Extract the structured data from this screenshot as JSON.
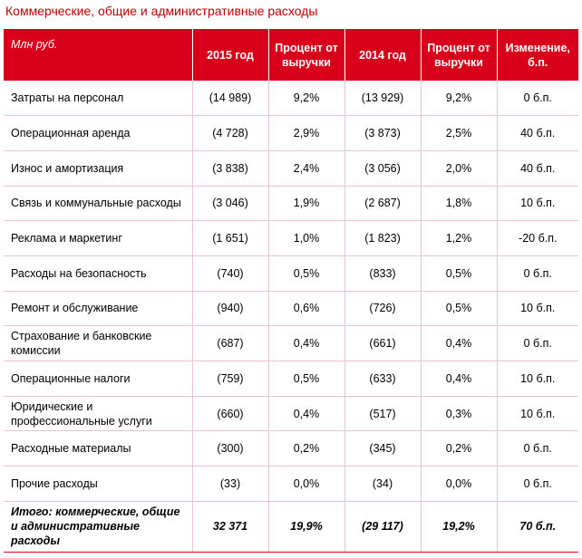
{
  "title": "Коммерческие, общие и административные расходы",
  "table": {
    "headers": [
      "Млн руб.",
      "2015 год",
      "Процент от выручки",
      "2014 год",
      "Процент от выручки",
      "Изменение, б.п."
    ],
    "rows": [
      [
        "Затраты на персонал",
        "(14 989)",
        "9,2%",
        "(13 929)",
        "9,2%",
        "0 б.п."
      ],
      [
        "Операционная аренда",
        "(4 728)",
        "2,9%",
        "(3 873)",
        "2,5%",
        "40 б.п."
      ],
      [
        "Износ и амортизация",
        "(3 838)",
        "2,4%",
        "(3 056)",
        "2,0%",
        "40 б.п."
      ],
      [
        "Связь и коммунальные расходы",
        "(3 046)",
        "1,9%",
        "(2 687)",
        "1,8%",
        "10 б.п."
      ],
      [
        "Реклама и маркетинг",
        "(1 651)",
        "1,0%",
        "(1 823)",
        "1,2%",
        "-20 б.п."
      ],
      [
        "Расходы на безопасность",
        "(740)",
        "0,5%",
        "(833)",
        "0,5%",
        "0 б.п."
      ],
      [
        "Ремонт и обслуживание",
        "(940)",
        "0,6%",
        "(726)",
        "0,5%",
        "10 б.п."
      ],
      [
        "Страхование и банковские комиссии",
        "(687)",
        "0,4%",
        "(661)",
        "0,4%",
        "0 б.п."
      ],
      [
        "Операционные налоги",
        "(759)",
        "0,5%",
        "(633)",
        "0,4%",
        "10 б.п."
      ],
      [
        "Юридические и профессиональные услуги",
        "(660)",
        "0,4%",
        "(517)",
        "0,3%",
        "10 б.п."
      ],
      [
        "Расходные материалы",
        "(300)",
        "0,2%",
        "(345)",
        "0,2%",
        "0 б.п."
      ],
      [
        "Прочие расходы",
        "(33)",
        "0,0%",
        "(34)",
        "0,0%",
        "0 б.п."
      ]
    ],
    "total": [
      "Итого: коммерческие, общие и административные расходы",
      "32 371",
      "19,9%",
      "(29 117)",
      "19,2%",
      "70 б.п."
    ]
  },
  "colors": {
    "header_bg": "#d9001b",
    "title_text": "#c00000"
  }
}
